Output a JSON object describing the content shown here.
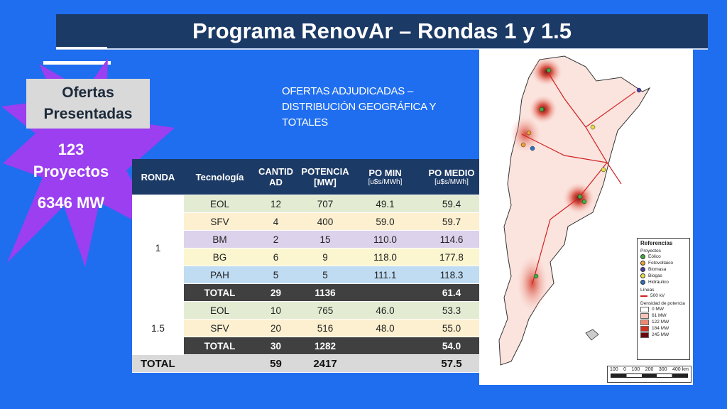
{
  "title": "Programa RenovAr – Rondas 1 y 1.5",
  "ofertas": {
    "label_line1": "Ofertas",
    "label_line2": "Presentadas",
    "proyectos_count": "123",
    "proyectos_label": "Proyectos",
    "potencia": "6346 MW",
    "burst_color": "#9b3ff0"
  },
  "subtitle": "OFERTAS ADJUDICADAS – DISTRIBUCIÓN GEOGRÁFICA Y TOTALES",
  "table": {
    "headers": {
      "ronda": "RONDA",
      "tecnologia": "Tecnología",
      "cantidad_1": "CANTID",
      "cantidad_2": "AD",
      "potencia_1": "POTENCIA",
      "potencia_2": "[MW]",
      "po_min": "PO MIN",
      "po_min_unit": "[u$s/MWh]",
      "po_medio": "PO MEDIO",
      "po_medio_unit": "[u$s/MWh]"
    },
    "ronda1": {
      "label": "1",
      "rows": [
        {
          "tec": "EOL",
          "cant": "12",
          "pot": "707",
          "min": "49.1",
          "medio": "59.4"
        },
        {
          "tec": "SFV",
          "cant": "4",
          "pot": "400",
          "min": "59.0",
          "medio": "59.7"
        },
        {
          "tec": "BM",
          "cant": "2",
          "pot": "15",
          "min": "110.0",
          "medio": "114.6"
        },
        {
          "tec": "BG",
          "cant": "6",
          "pot": "9",
          "min": "118.0",
          "medio": "177.8"
        },
        {
          "tec": "PAH",
          "cant": "5",
          "pot": "5",
          "min": "111.1",
          "medio": "118.3"
        }
      ],
      "total": {
        "tec": "TOTAL",
        "cant": "29",
        "pot": "1136",
        "min": "",
        "medio": "61.4"
      }
    },
    "ronda15": {
      "label": "1.5",
      "rows": [
        {
          "tec": "EOL",
          "cant": "10",
          "pot": "765",
          "min": "46.0",
          "medio": "53.3"
        },
        {
          "tec": "SFV",
          "cant": "20",
          "pot": "516",
          "min": "48.0",
          "medio": "55.0"
        }
      ],
      "total": {
        "tec": "TOTAL",
        "cant": "30",
        "pot": "1282",
        "min": "",
        "medio": "54.0"
      }
    },
    "grand_total": {
      "label": "TOTAL",
      "cant": "59",
      "pot": "2417",
      "medio": "57.5"
    },
    "row_colors": {
      "EOL": "#e3ecd3",
      "SFV": "#fdf0d0",
      "BM": "#dcd2ec",
      "BG": "#fbf6cf",
      "PAH": "#bfdcf2"
    }
  },
  "map": {
    "legend": {
      "title": "Referencias",
      "proyectos_label": "Proyectos",
      "items": [
        {
          "label": "Eólico",
          "color": "#3fae3f"
        },
        {
          "label": "Fotovoltaico",
          "color": "#f0a030"
        },
        {
          "label": "Biomasa",
          "color": "#4a3ea8"
        },
        {
          "label": "Biogas",
          "color": "#e8e040"
        },
        {
          "label": "Hidráulico",
          "color": "#2f6fc0"
        }
      ],
      "lineas_label": "Líneas",
      "line_item": "500 kV",
      "densidad_label": "Densidad de potencia",
      "density": [
        {
          "label": "0 MW",
          "color": "#ffffff"
        },
        {
          "label": "61 MW",
          "color": "#f6c3b8"
        },
        {
          "label": "122 MW",
          "color": "#ee8a70"
        },
        {
          "label": "184 MW",
          "color": "#d03020"
        },
        {
          "label": "245 MW",
          "color": "#6a0a0a"
        }
      ]
    },
    "scale_labels": [
      "100",
      "0",
      "100",
      "200",
      "300",
      "400 km"
    ]
  }
}
